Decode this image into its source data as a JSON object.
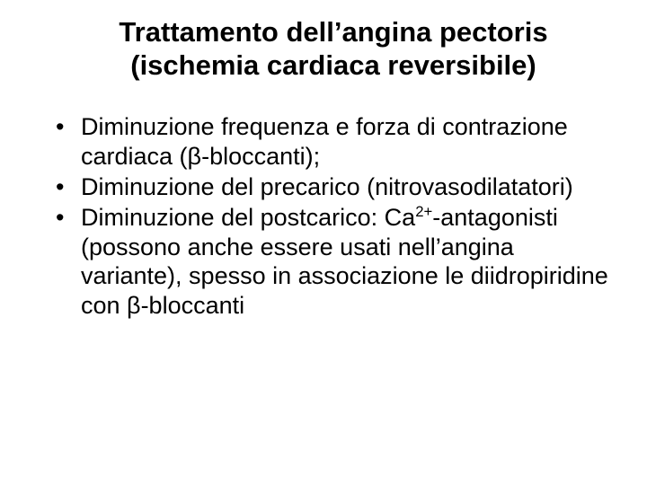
{
  "title_fontsize": 31,
  "body_fontsize": 27,
  "text_color": "#000000",
  "background_color": "#ffffff",
  "font_family": "Arial",
  "title_line1": "Trattamento dell’angina pectoris",
  "title_line2": "(ischemia cardiaca reversibile)",
  "bullets": [
    {
      "text": "Diminuzione frequenza e forza di contrazione cardiaca (β-bloccanti);"
    },
    {
      "text": "Diminuzione del precarico (nitrovasodilatatori)"
    },
    {
      "prefix": "Diminuzione del postcarico: Ca",
      "sup": "2+",
      "suffix": "-antagonisti (possono anche essere usati nell’angina variante), spesso in associazione le diidropiridine con β-bloccanti"
    }
  ]
}
